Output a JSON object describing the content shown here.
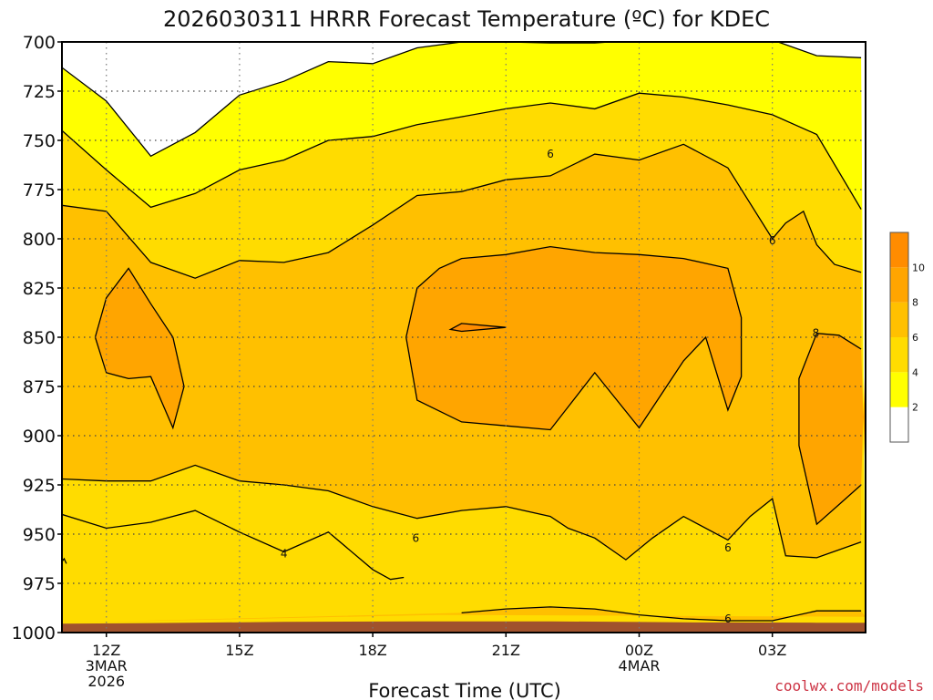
{
  "chart_data": {
    "type": "heatmap",
    "title": "2026030311 HRRR Forecast Temperature (ºC) for KDEC",
    "xlabel": "Forecast Time (UTC)",
    "ylabel": "",
    "y_ticks": [
      "700",
      "725",
      "750",
      "775",
      "800",
      "825",
      "850",
      "875",
      "900",
      "925",
      "950",
      "975",
      "1000"
    ],
    "y_range": [
      700,
      1000
    ],
    "x_ticks": [
      {
        "hour": 12,
        "lines": [
          "12Z",
          "3MAR",
          "2026"
        ]
      },
      {
        "hour": 15,
        "lines": [
          "15Z"
        ]
      },
      {
        "hour": 18,
        "lines": [
          "18Z"
        ]
      },
      {
        "hour": 21,
        "lines": [
          "21Z"
        ]
      },
      {
        "hour": 24,
        "lines": [
          "00Z",
          "4MAR"
        ]
      },
      {
        "hour": 27,
        "lines": [
          "03Z"
        ]
      }
    ],
    "x_range": [
      11,
      29.1
    ],
    "grid": true,
    "legend": {
      "placement": "right",
      "bands": [
        {
          "label": "",
          "color": "#ffffff"
        },
        {
          "label": "2",
          "color": "#ffff00"
        },
        {
          "label": "4",
          "color": "#ffdc00"
        },
        {
          "label": "6",
          "color": "#ffc000"
        },
        {
          "label": "8",
          "color": "#ffa500"
        },
        {
          "label": "10",
          "color": "#ff8c00"
        }
      ]
    },
    "contour_levels": [
      2,
      4,
      6,
      8,
      10
    ],
    "band_colors": [
      "#ffffff",
      "#ffff00",
      "#ffdc00",
      "#ffc000",
      "#ffa500",
      "#ff8c00"
    ],
    "ground_color": "#a0522d",
    "freezing_color": "#cc0066",
    "contour_labels": [
      {
        "text": "6",
        "hour": 22.0,
        "p": 757
      },
      {
        "text": "6",
        "hour": 27.0,
        "p": 801
      },
      {
        "text": "8",
        "hour": 27.98,
        "p": 848
      },
      {
        "text": "6",
        "hour": 18.97,
        "p": 952
      },
      {
        "text": "6",
        "hour": 26.0,
        "p": 957
      },
      {
        "text": "4",
        "hour": 16.0,
        "p": 960
      },
      {
        "text": "6",
        "hour": 26.0,
        "p": 993
      }
    ],
    "isolines": {
      "t2": [
        [
          11,
          713
        ],
        [
          12,
          730
        ],
        [
          13,
          758
        ],
        [
          14,
          746
        ],
        [
          15,
          727
        ],
        [
          16,
          720
        ],
        [
          17,
          710
        ],
        [
          18,
          711
        ],
        [
          19,
          703
        ],
        [
          20,
          700
        ],
        [
          21,
          700
        ],
        [
          22,
          700.5
        ],
        [
          23,
          700.5
        ],
        [
          24,
          699
        ],
        [
          25,
          697
        ],
        [
          26,
          698
        ],
        [
          27,
          699
        ],
        [
          28,
          707
        ],
        [
          29,
          708
        ]
      ],
      "t4": [
        [
          11,
          745
        ],
        [
          12,
          765
        ],
        [
          13,
          784
        ],
        [
          14,
          777
        ],
        [
          15,
          765
        ],
        [
          16,
          760
        ],
        [
          17,
          750
        ],
        [
          18,
          748
        ],
        [
          19,
          742
        ],
        [
          20,
          738
        ],
        [
          21,
          734
        ],
        [
          22,
          731
        ],
        [
          23,
          734
        ],
        [
          24,
          726
        ],
        [
          25,
          728
        ],
        [
          26,
          732
        ],
        [
          27,
          737
        ],
        [
          28,
          747
        ],
        [
          29,
          785
        ]
      ],
      "t6": [
        [
          11,
          783
        ],
        [
          12,
          786
        ],
        [
          13,
          812
        ],
        [
          14,
          820
        ],
        [
          15,
          811
        ],
        [
          16,
          812
        ],
        [
          17,
          807
        ],
        [
          18,
          793
        ],
        [
          19,
          778
        ],
        [
          20,
          776
        ],
        [
          21,
          770
        ],
        [
          22,
          768
        ],
        [
          23,
          757
        ],
        [
          24,
          760
        ],
        [
          25,
          752
        ],
        [
          26,
          764
        ],
        [
          27,
          800
        ],
        [
          27.3,
          792
        ],
        [
          27.7,
          786
        ],
        [
          28.0,
          803
        ],
        [
          28.4,
          813
        ],
        [
          29,
          817
        ]
      ],
      "t6_low": [
        [
          11,
          922
        ],
        [
          12,
          923
        ],
        [
          13,
          923
        ],
        [
          14,
          915
        ],
        [
          15,
          923
        ],
        [
          16,
          925
        ],
        [
          17,
          928
        ],
        [
          18,
          936
        ],
        [
          19,
          942
        ],
        [
          20,
          938
        ],
        [
          21,
          936
        ],
        [
          22,
          941
        ],
        [
          22.4,
          947
        ],
        [
          23,
          952
        ],
        [
          23.7,
          963
        ],
        [
          24.3,
          952
        ],
        [
          25,
          941
        ],
        [
          26,
          953
        ],
        [
          26.5,
          941
        ],
        [
          27,
          932
        ],
        [
          27.3,
          961
        ],
        [
          28,
          962
        ],
        [
          29,
          954
        ]
      ],
      "t4_low": [
        [
          11,
          940
        ],
        [
          12,
          947
        ],
        [
          13,
          944
        ],
        [
          14,
          938
        ],
        [
          15,
          949
        ],
        [
          16,
          959
        ],
        [
          17,
          949
        ],
        [
          18,
          968
        ],
        [
          18.4,
          973
        ],
        [
          18.7,
          972
        ]
      ],
      "t6_sfc": [
        [
          20,
          990
        ],
        [
          21,
          988
        ],
        [
          22,
          987
        ],
        [
          23,
          988
        ],
        [
          24,
          991
        ],
        [
          25,
          993
        ],
        [
          26,
          994
        ],
        [
          27,
          994
        ],
        [
          28,
          989
        ],
        [
          29,
          989
        ]
      ],
      "t8_left": [
        [
          11.75,
          850
        ],
        [
          12,
          830
        ],
        [
          12.5,
          815
        ],
        [
          13,
          833
        ],
        [
          13.5,
          850
        ],
        [
          13.75,
          875
        ],
        [
          13.5,
          896
        ],
        [
          13,
          870
        ],
        [
          12.5,
          871
        ],
        [
          12,
          868
        ],
        [
          11.75,
          850
        ]
      ],
      "t8_center": [
        [
          18.75,
          850
        ],
        [
          19,
          825
        ],
        [
          19.5,
          815
        ],
        [
          20,
          810
        ],
        [
          21,
          808
        ],
        [
          22,
          804
        ],
        [
          23,
          807
        ],
        [
          24,
          808
        ],
        [
          25,
          810
        ],
        [
          26,
          815
        ],
        [
          26.3,
          840
        ],
        [
          26.3,
          870
        ],
        [
          26.0,
          887
        ],
        [
          25.5,
          850
        ],
        [
          25,
          862
        ],
        [
          24,
          896
        ],
        [
          23,
          868
        ],
        [
          22,
          897
        ],
        [
          21,
          895
        ],
        [
          20,
          893
        ],
        [
          19,
          882
        ],
        [
          18.75,
          850
        ]
      ],
      "t10": [
        [
          19.75,
          846
        ],
        [
          20,
          843
        ],
        [
          21,
          845
        ],
        [
          20,
          847
        ],
        [
          19.75,
          846
        ]
      ],
      "t8_right": [
        [
          29,
          856
        ],
        [
          28.5,
          849
        ],
        [
          28,
          848
        ],
        [
          27.6,
          871
        ],
        [
          27.6,
          905
        ],
        [
          28,
          945
        ],
        [
          28.5,
          935
        ],
        [
          29,
          925
        ]
      ]
    }
  },
  "credit": "coolwx.com/models"
}
